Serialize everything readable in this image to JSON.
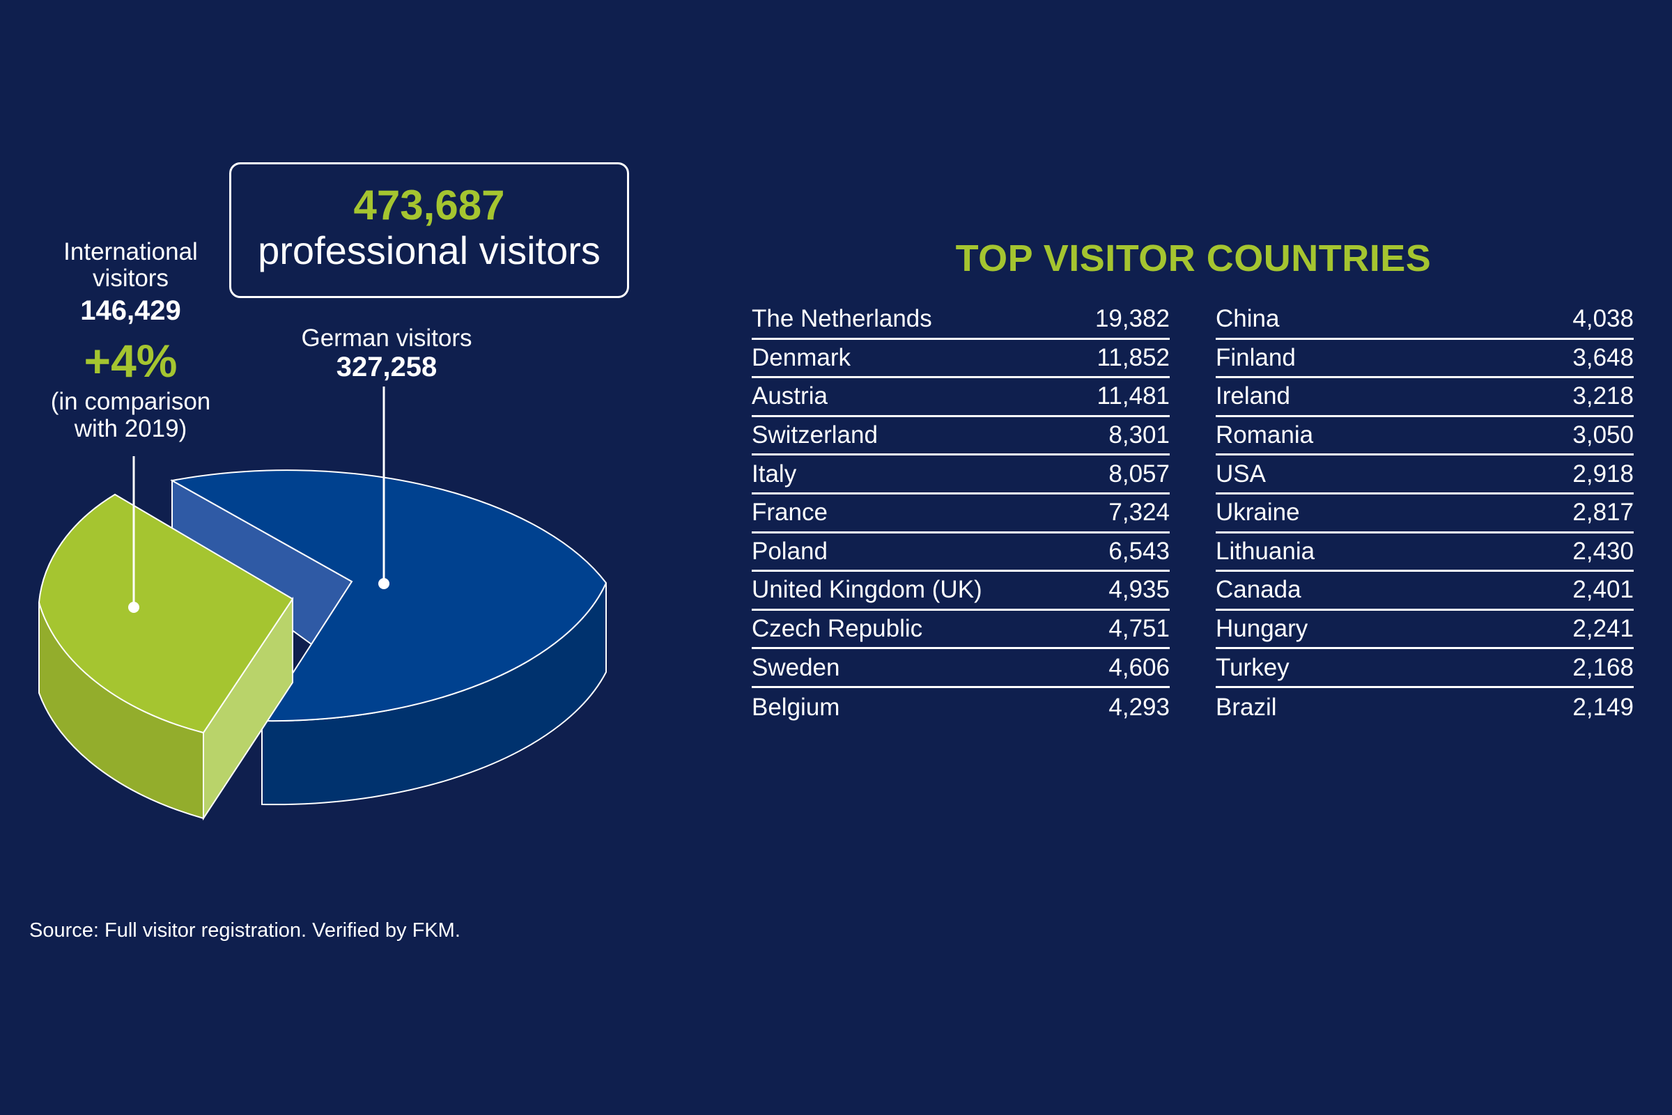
{
  "summary": {
    "total_value": "473,687",
    "total_label": "professional visitors"
  },
  "international": {
    "label_line1": "International",
    "label_line2": "visitors",
    "value": "146,429",
    "change": "+4%",
    "note_line1": "(in comparison",
    "note_line2": "with 2019)"
  },
  "german": {
    "label": "German visitors",
    "value": "327,258"
  },
  "colors": {
    "background": "#0f1f4e",
    "accent_green": "#a5c530",
    "german_blue": "#00418f"
  },
  "chart_data": {
    "type": "pie",
    "series": [
      {
        "name": "International visitors",
        "value": 146429,
        "color": "#a5c530"
      },
      {
        "name": "German visitors",
        "value": 327258,
        "color": "#00418f"
      }
    ],
    "total": 473687
  },
  "countries": {
    "title": "TOP VISITOR COUNTRIES",
    "left": [
      {
        "country": "The Netherlands",
        "value": "19,382"
      },
      {
        "country": "Denmark",
        "value": "11,852"
      },
      {
        "country": "Austria",
        "value": "11,481"
      },
      {
        "country": "Switzerland",
        "value": "8,301"
      },
      {
        "country": "Italy",
        "value": "8,057"
      },
      {
        "country": "France",
        "value": "7,324"
      },
      {
        "country": "Poland",
        "value": "6,543"
      },
      {
        "country": "United Kingdom (UK)",
        "value": "4,935"
      },
      {
        "country": "Czech Republic",
        "value": "4,751"
      },
      {
        "country": "Sweden",
        "value": "4,606"
      },
      {
        "country": "Belgium",
        "value": "4,293"
      }
    ],
    "right": [
      {
        "country": "China",
        "value": "4,038"
      },
      {
        "country": "Finland",
        "value": "3,648"
      },
      {
        "country": "Ireland",
        "value": "3,218"
      },
      {
        "country": "Romania",
        "value": "3,050"
      },
      {
        "country": "USA",
        "value": "2,918"
      },
      {
        "country": "Ukraine",
        "value": "2,817"
      },
      {
        "country": "Lithuania",
        "value": "2,430"
      },
      {
        "country": "Canada",
        "value": "2,401"
      },
      {
        "country": "Hungary",
        "value": "2,241"
      },
      {
        "country": "Turkey",
        "value": "2,168"
      },
      {
        "country": "Brazil",
        "value": "2,149"
      }
    ]
  },
  "source": "Source: Full visitor registration. Verified by FKM."
}
